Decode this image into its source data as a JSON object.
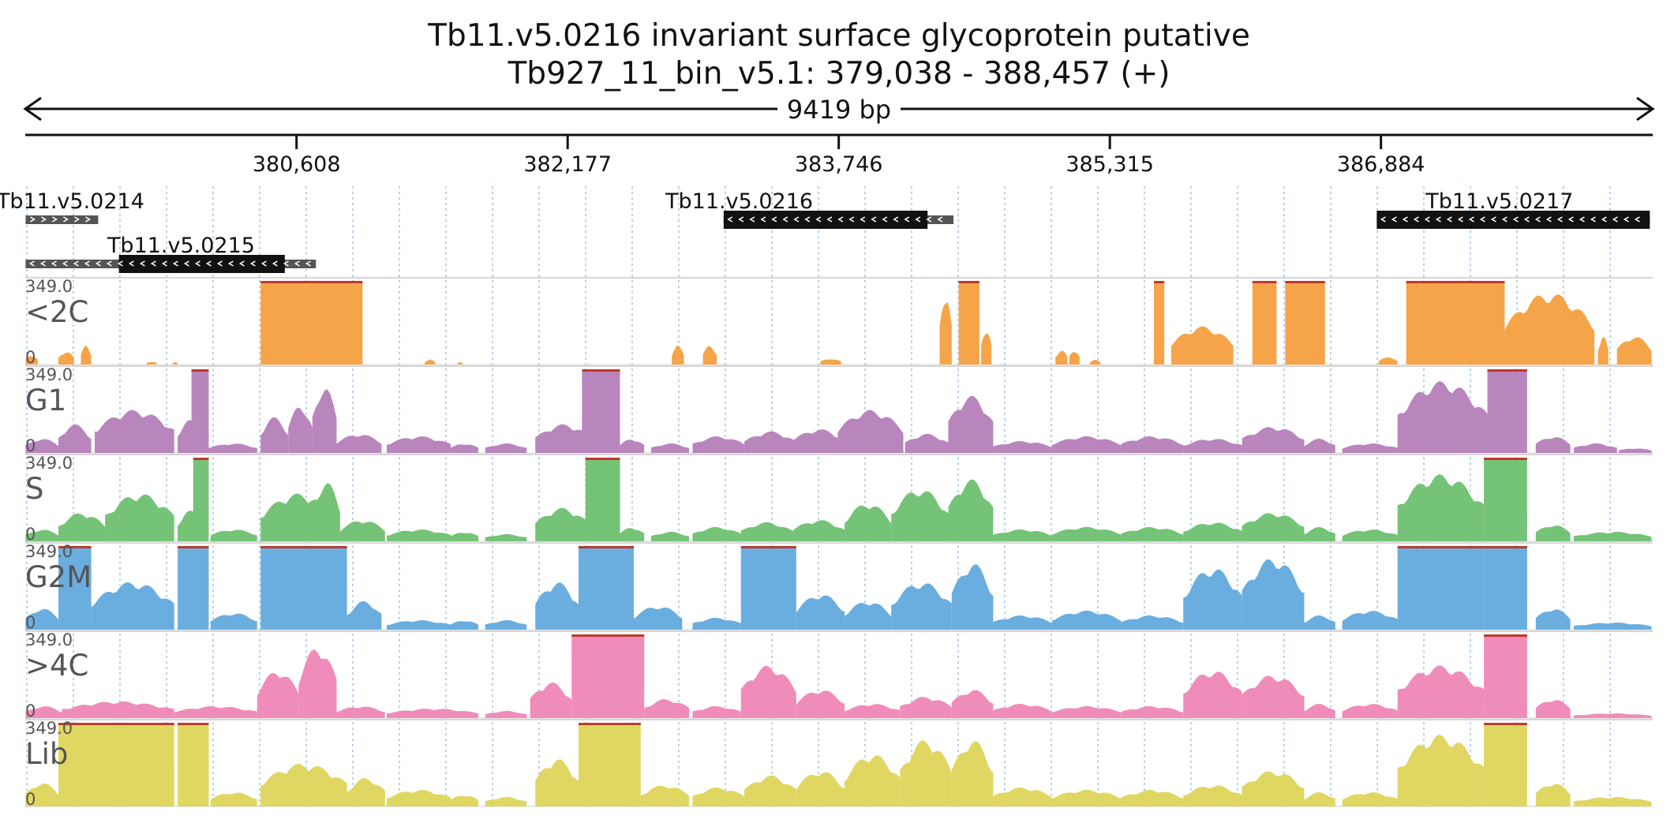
{
  "title": {
    "line1": "Tb11.v5.0216  invariant surface glycoprotein  putative",
    "line2": "Tb927_11_bin_v5.1: 379,038 - 388,457 (+)"
  },
  "span": {
    "start": 379038,
    "end": 388457,
    "label": "9419 bp"
  },
  "ruler": {
    "ticks": [
      {
        "pos": 380608,
        "label": "380,608"
      },
      {
        "pos": 382177,
        "label": "382,177"
      },
      {
        "pos": 383746,
        "label": "383,746"
      },
      {
        "pos": 385315,
        "label": "385,315"
      },
      {
        "pos": 386884,
        "label": "386,884"
      }
    ]
  },
  "genes": [
    {
      "name": "Tb11.v5.0214",
      "strand": "+",
      "row": 0,
      "utr": [
        379040,
        379460
      ],
      "cds": null,
      "label_pos": 379300
    },
    {
      "name": "Tb11.v5.0215",
      "strand": "-",
      "row": 1,
      "utr": [
        379040,
        380720
      ],
      "cds": [
        379580,
        380540
      ],
      "label_pos": 379940
    },
    {
      "name": "Tb11.v5.0216",
      "strand": "-",
      "row": 0,
      "utr": [
        383080,
        384410
      ],
      "cds": [
        383080,
        384260
      ],
      "label_pos": 383170
    },
    {
      "name": "Tb11.v5.0217",
      "strand": "-",
      "row": 0,
      "utr": [
        386860,
        388440
      ],
      "cds": [
        386860,
        388440
      ],
      "label_pos": 387570
    }
  ],
  "chart_data": {
    "type": "area",
    "x_range": [
      379038,
      388457
    ],
    "ymax_label": "349.0",
    "ymin_label": "0",
    "ymax": 349,
    "tracks": [
      {
        "name": "<2C",
        "color": "#f5a449",
        "peaks": [
          {
            "s": 379040,
            "e": 379110,
            "h": 40
          },
          {
            "s": 379230,
            "e": 379320,
            "h": 55
          },
          {
            "s": 379360,
            "e": 379420,
            "h": 80
          },
          {
            "s": 379740,
            "e": 379800,
            "h": 12
          },
          {
            "s": 379890,
            "e": 379920,
            "h": 10
          },
          {
            "s": 380400,
            "e": 380990,
            "h": 349
          },
          {
            "s": 381350,
            "e": 381410,
            "h": 20
          },
          {
            "s": 381540,
            "e": 381570,
            "h": 10
          },
          {
            "s": 382780,
            "e": 382850,
            "h": 80
          },
          {
            "s": 382960,
            "e": 383040,
            "h": 80
          },
          {
            "s": 383640,
            "e": 383760,
            "h": 25
          },
          {
            "s": 384330,
            "e": 384400,
            "h": 300
          },
          {
            "s": 384440,
            "e": 384560,
            "h": 349
          },
          {
            "s": 384570,
            "e": 384630,
            "h": 150
          },
          {
            "s": 385000,
            "e": 385070,
            "h": 60
          },
          {
            "s": 385080,
            "e": 385140,
            "h": 60
          },
          {
            "s": 385200,
            "e": 385260,
            "h": 20
          },
          {
            "s": 385570,
            "e": 385630,
            "h": 349
          },
          {
            "s": 385670,
            "e": 386030,
            "h": 160
          },
          {
            "s": 386140,
            "e": 386280,
            "h": 349
          },
          {
            "s": 386330,
            "e": 386560,
            "h": 349
          },
          {
            "s": 386870,
            "e": 386980,
            "h": 30
          },
          {
            "s": 387030,
            "e": 387600,
            "h": 349
          },
          {
            "s": 387600,
            "e": 388120,
            "h": 300
          },
          {
            "s": 388140,
            "e": 388200,
            "h": 120
          },
          {
            "s": 388250,
            "e": 388450,
            "h": 120
          }
        ]
      },
      {
        "name": "G1",
        "color": "#b985bd",
        "peaks": [
          {
            "s": 379040,
            "e": 379230,
            "h": 60
          },
          {
            "s": 379230,
            "e": 379420,
            "h": 120
          },
          {
            "s": 379440,
            "e": 379900,
            "h": 180
          },
          {
            "s": 379920,
            "e": 380050,
            "h": 140
          },
          {
            "s": 380000,
            "e": 380100,
            "h": 349
          },
          {
            "s": 380100,
            "e": 380380,
            "h": 40
          },
          {
            "s": 380400,
            "e": 380560,
            "h": 150
          },
          {
            "s": 380560,
            "e": 380700,
            "h": 200
          },
          {
            "s": 380700,
            "e": 380840,
            "h": 280
          },
          {
            "s": 380840,
            "e": 381100,
            "h": 80
          },
          {
            "s": 381130,
            "e": 381500,
            "h": 70
          },
          {
            "s": 381500,
            "e": 381660,
            "h": 40
          },
          {
            "s": 381700,
            "e": 381940,
            "h": 40
          },
          {
            "s": 381990,
            "e": 382320,
            "h": 120
          },
          {
            "s": 382260,
            "e": 382480,
            "h": 349
          },
          {
            "s": 382480,
            "e": 382620,
            "h": 60
          },
          {
            "s": 382660,
            "e": 382880,
            "h": 40
          },
          {
            "s": 382900,
            "e": 383200,
            "h": 70
          },
          {
            "s": 383200,
            "e": 383500,
            "h": 90
          },
          {
            "s": 383480,
            "e": 383780,
            "h": 100
          },
          {
            "s": 383740,
            "e": 384120,
            "h": 180
          },
          {
            "s": 384130,
            "e": 384380,
            "h": 80
          },
          {
            "s": 384380,
            "e": 384640,
            "h": 240
          },
          {
            "s": 384640,
            "e": 384980,
            "h": 50
          },
          {
            "s": 384980,
            "e": 385380,
            "h": 70
          },
          {
            "s": 385380,
            "e": 385740,
            "h": 70
          },
          {
            "s": 385740,
            "e": 386080,
            "h": 60
          },
          {
            "s": 386080,
            "e": 386440,
            "h": 110
          },
          {
            "s": 386440,
            "e": 386620,
            "h": 60
          },
          {
            "s": 386660,
            "e": 386980,
            "h": 40
          },
          {
            "s": 386980,
            "e": 387500,
            "h": 300
          },
          {
            "s": 387500,
            "e": 387730,
            "h": 349
          },
          {
            "s": 387780,
            "e": 387980,
            "h": 70
          },
          {
            "s": 388000,
            "e": 388250,
            "h": 40
          },
          {
            "s": 388260,
            "e": 388450,
            "h": 20
          }
        ]
      },
      {
        "name": "S",
        "color": "#74c376",
        "peaks": [
          {
            "s": 379040,
            "e": 379230,
            "h": 50
          },
          {
            "s": 379230,
            "e": 379500,
            "h": 120
          },
          {
            "s": 379500,
            "e": 379900,
            "h": 200
          },
          {
            "s": 379920,
            "e": 380060,
            "h": 130
          },
          {
            "s": 380010,
            "e": 380100,
            "h": 349
          },
          {
            "s": 380110,
            "e": 380380,
            "h": 50
          },
          {
            "s": 380400,
            "e": 380840,
            "h": 200
          },
          {
            "s": 380700,
            "e": 380860,
            "h": 250
          },
          {
            "s": 380860,
            "e": 381120,
            "h": 90
          },
          {
            "s": 381130,
            "e": 381500,
            "h": 50
          },
          {
            "s": 381500,
            "e": 381660,
            "h": 40
          },
          {
            "s": 381700,
            "e": 381940,
            "h": 30
          },
          {
            "s": 381990,
            "e": 382300,
            "h": 140
          },
          {
            "s": 382280,
            "e": 382480,
            "h": 349
          },
          {
            "s": 382480,
            "e": 382620,
            "h": 60
          },
          {
            "s": 382660,
            "e": 382880,
            "h": 40
          },
          {
            "s": 382900,
            "e": 383180,
            "h": 60
          },
          {
            "s": 383180,
            "e": 383480,
            "h": 80
          },
          {
            "s": 383480,
            "e": 383780,
            "h": 90
          },
          {
            "s": 383780,
            "e": 384050,
            "h": 160
          },
          {
            "s": 384050,
            "e": 384380,
            "h": 220
          },
          {
            "s": 384380,
            "e": 384640,
            "h": 260
          },
          {
            "s": 384640,
            "e": 384980,
            "h": 50
          },
          {
            "s": 384980,
            "e": 385380,
            "h": 60
          },
          {
            "s": 385380,
            "e": 385740,
            "h": 60
          },
          {
            "s": 385740,
            "e": 386080,
            "h": 80
          },
          {
            "s": 386080,
            "e": 386440,
            "h": 120
          },
          {
            "s": 386440,
            "e": 386620,
            "h": 60
          },
          {
            "s": 386660,
            "e": 386980,
            "h": 50
          },
          {
            "s": 386980,
            "e": 387480,
            "h": 280
          },
          {
            "s": 387480,
            "e": 387730,
            "h": 349
          },
          {
            "s": 387780,
            "e": 387980,
            "h": 70
          },
          {
            "s": 388000,
            "e": 388450,
            "h": 40
          }
        ]
      },
      {
        "name": "G2M",
        "color": "#6aaee0",
        "peaks": [
          {
            "s": 379040,
            "e": 379230,
            "h": 90
          },
          {
            "s": 379230,
            "e": 379420,
            "h": 349
          },
          {
            "s": 379420,
            "e": 379900,
            "h": 200
          },
          {
            "s": 379920,
            "e": 380100,
            "h": 349
          },
          {
            "s": 380110,
            "e": 380380,
            "h": 70
          },
          {
            "s": 380400,
            "e": 380900,
            "h": 349
          },
          {
            "s": 380900,
            "e": 381100,
            "h": 120
          },
          {
            "s": 381130,
            "e": 381500,
            "h": 40
          },
          {
            "s": 381500,
            "e": 381660,
            "h": 40
          },
          {
            "s": 381700,
            "e": 381940,
            "h": 40
          },
          {
            "s": 381990,
            "e": 382240,
            "h": 200
          },
          {
            "s": 382240,
            "e": 382560,
            "h": 349
          },
          {
            "s": 382560,
            "e": 382840,
            "h": 100
          },
          {
            "s": 382900,
            "e": 383180,
            "h": 50
          },
          {
            "s": 383180,
            "e": 383500,
            "h": 349
          },
          {
            "s": 383500,
            "e": 383780,
            "h": 150
          },
          {
            "s": 383780,
            "e": 384050,
            "h": 120
          },
          {
            "s": 384050,
            "e": 384400,
            "h": 200
          },
          {
            "s": 384400,
            "e": 384640,
            "h": 280
          },
          {
            "s": 384640,
            "e": 384980,
            "h": 60
          },
          {
            "s": 384980,
            "e": 385380,
            "h": 80
          },
          {
            "s": 385380,
            "e": 385740,
            "h": 60
          },
          {
            "s": 385740,
            "e": 386080,
            "h": 260
          },
          {
            "s": 386080,
            "e": 386440,
            "h": 300
          },
          {
            "s": 386440,
            "e": 386620,
            "h": 60
          },
          {
            "s": 386660,
            "e": 386980,
            "h": 80
          },
          {
            "s": 386980,
            "e": 387480,
            "h": 349
          },
          {
            "s": 387480,
            "e": 387730,
            "h": 349
          },
          {
            "s": 387780,
            "e": 387980,
            "h": 90
          },
          {
            "s": 388000,
            "e": 388450,
            "h": 30
          }
        ]
      },
      {
        "name": ">4C",
        "color": "#f08cba",
        "peaks": [
          {
            "s": 379040,
            "e": 379250,
            "h": 50
          },
          {
            "s": 379250,
            "e": 379900,
            "h": 70
          },
          {
            "s": 379900,
            "e": 380380,
            "h": 50
          },
          {
            "s": 380380,
            "e": 380620,
            "h": 200
          },
          {
            "s": 380620,
            "e": 380840,
            "h": 300
          },
          {
            "s": 380840,
            "e": 381120,
            "h": 50
          },
          {
            "s": 381130,
            "e": 381660,
            "h": 40
          },
          {
            "s": 381700,
            "e": 381940,
            "h": 30
          },
          {
            "s": 381960,
            "e": 382200,
            "h": 150
          },
          {
            "s": 382200,
            "e": 382620,
            "h": 349
          },
          {
            "s": 382620,
            "e": 382880,
            "h": 80
          },
          {
            "s": 382900,
            "e": 383180,
            "h": 50
          },
          {
            "s": 383180,
            "e": 383500,
            "h": 220
          },
          {
            "s": 383500,
            "e": 383780,
            "h": 120
          },
          {
            "s": 383780,
            "e": 384100,
            "h": 60
          },
          {
            "s": 384100,
            "e": 384400,
            "h": 90
          },
          {
            "s": 384400,
            "e": 384640,
            "h": 120
          },
          {
            "s": 384640,
            "e": 384980,
            "h": 60
          },
          {
            "s": 384980,
            "e": 385380,
            "h": 50
          },
          {
            "s": 385380,
            "e": 385740,
            "h": 50
          },
          {
            "s": 385740,
            "e": 386080,
            "h": 200
          },
          {
            "s": 386080,
            "e": 386440,
            "h": 180
          },
          {
            "s": 386440,
            "e": 386620,
            "h": 60
          },
          {
            "s": 386660,
            "e": 386980,
            "h": 60
          },
          {
            "s": 386980,
            "e": 387480,
            "h": 220
          },
          {
            "s": 387480,
            "e": 387730,
            "h": 349
          },
          {
            "s": 387780,
            "e": 387980,
            "h": 80
          },
          {
            "s": 388000,
            "e": 388450,
            "h": 20
          }
        ]
      },
      {
        "name": "Lib",
        "color": "#e0d762",
        "peaks": [
          {
            "s": 379040,
            "e": 379230,
            "h": 100
          },
          {
            "s": 379230,
            "e": 379420,
            "h": 349
          },
          {
            "s": 379420,
            "e": 379900,
            "h": 349
          },
          {
            "s": 379920,
            "e": 380100,
            "h": 349
          },
          {
            "s": 380110,
            "e": 380380,
            "h": 60
          },
          {
            "s": 380400,
            "e": 380900,
            "h": 180
          },
          {
            "s": 380900,
            "e": 381120,
            "h": 120
          },
          {
            "s": 381130,
            "e": 381500,
            "h": 70
          },
          {
            "s": 381500,
            "e": 381660,
            "h": 50
          },
          {
            "s": 381700,
            "e": 381940,
            "h": 40
          },
          {
            "s": 381990,
            "e": 382240,
            "h": 200
          },
          {
            "s": 382240,
            "e": 382600,
            "h": 349
          },
          {
            "s": 382600,
            "e": 382880,
            "h": 90
          },
          {
            "s": 382900,
            "e": 383200,
            "h": 80
          },
          {
            "s": 383200,
            "e": 383500,
            "h": 130
          },
          {
            "s": 383500,
            "e": 383780,
            "h": 150
          },
          {
            "s": 383780,
            "e": 384100,
            "h": 220
          },
          {
            "s": 384100,
            "e": 384400,
            "h": 280
          },
          {
            "s": 384400,
            "e": 384640,
            "h": 280
          },
          {
            "s": 384640,
            "e": 384980,
            "h": 80
          },
          {
            "s": 384980,
            "e": 385380,
            "h": 70
          },
          {
            "s": 385380,
            "e": 385740,
            "h": 70
          },
          {
            "s": 385740,
            "e": 386080,
            "h": 90
          },
          {
            "s": 386080,
            "e": 386440,
            "h": 150
          },
          {
            "s": 386440,
            "e": 386620,
            "h": 60
          },
          {
            "s": 386660,
            "e": 386980,
            "h": 60
          },
          {
            "s": 386980,
            "e": 387480,
            "h": 300
          },
          {
            "s": 387480,
            "e": 387730,
            "h": 349
          },
          {
            "s": 387780,
            "e": 387980,
            "h": 100
          },
          {
            "s": 388000,
            "e": 388450,
            "h": 40
          }
        ]
      }
    ]
  }
}
